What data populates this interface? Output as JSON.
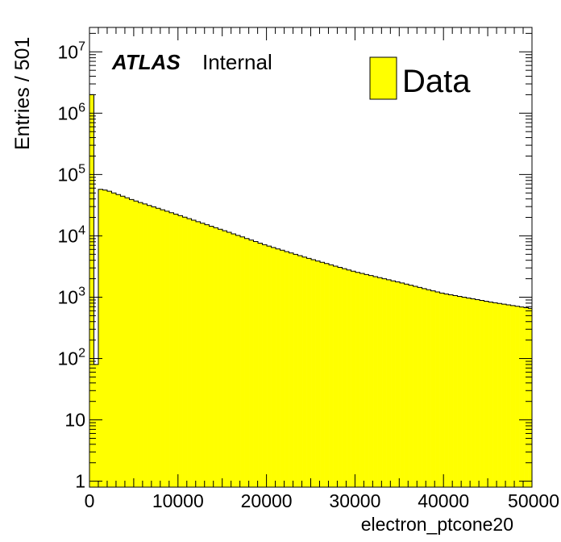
{
  "chart_data": {
    "type": "bar",
    "title": "",
    "xlabel": "electron_ptcone20",
    "ylabel": "Entries / 501",
    "xlim": [
      0,
      50000
    ],
    "ylim": [
      0.8,
      25000000
    ],
    "yscale": "log",
    "bin_width": 501,
    "fill_color": "#ffff00",
    "edge_color": "#000000",
    "legend": {
      "placement": "top-right",
      "entries": [
        "Data"
      ]
    },
    "annotation": {
      "experiment": "ATLAS",
      "status": "Internal"
    },
    "x_ticks": [
      "0",
      "10000",
      "20000",
      "30000",
      "40000",
      "50000"
    ],
    "y_ticks": [
      {
        "base": "1",
        "exp": ""
      },
      {
        "base": "10",
        "exp": ""
      },
      {
        "base": "10",
        "exp": "2"
      },
      {
        "base": "10",
        "exp": "3"
      },
      {
        "base": "10",
        "exp": "4"
      },
      {
        "base": "10",
        "exp": "5"
      },
      {
        "base": "10",
        "exp": "6"
      },
      {
        "base": "10",
        "exp": "7"
      }
    ],
    "first_bins": [
      {
        "x_low": 0,
        "value": 2000000
      },
      {
        "x_low": 501,
        "value": 80
      }
    ],
    "shape_points": [
      {
        "x": 1002,
        "value": 58000
      },
      {
        "x": 2000,
        "value": 55000
      },
      {
        "x": 5000,
        "value": 38000
      },
      {
        "x": 10000,
        "value": 22000
      },
      {
        "x": 15000,
        "value": 12500
      },
      {
        "x": 20000,
        "value": 7000
      },
      {
        "x": 25000,
        "value": 4200
      },
      {
        "x": 30000,
        "value": 2600
      },
      {
        "x": 35000,
        "value": 1750
      },
      {
        "x": 40000,
        "value": 1150
      },
      {
        "x": 45000,
        "value": 850
      },
      {
        "x": 50000,
        "value": 650
      }
    ]
  }
}
